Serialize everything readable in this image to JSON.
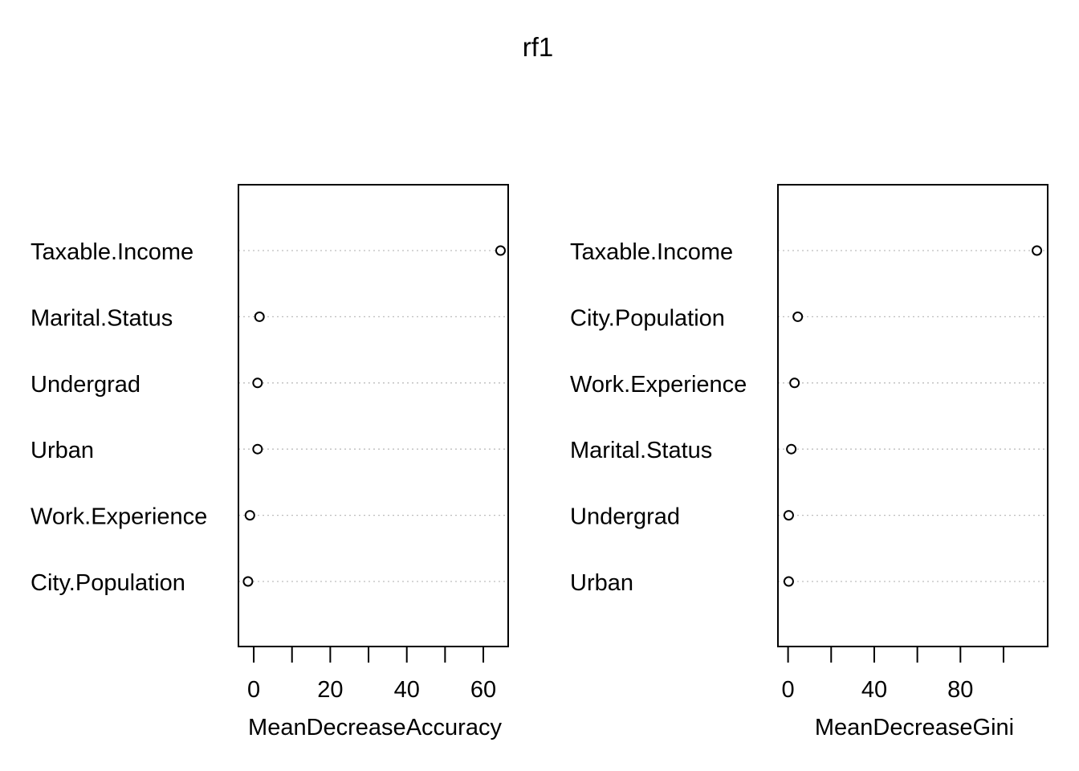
{
  "title": "rf1",
  "chart_data": [
    {
      "type": "scatter",
      "variant": "dotchart",
      "xlabel": "MeanDecreaseAccuracy",
      "ylabel": "",
      "categories": [
        "Taxable.Income",
        "Marital.Status",
        "Undergrad",
        "Urban",
        "Work.Experience",
        "City.Population"
      ],
      "values": [
        64.5,
        1.5,
        1.0,
        1.0,
        -1.0,
        -1.5
      ],
      "xlim": [
        -4,
        66.5
      ],
      "xticks": [
        0,
        10,
        20,
        30,
        40,
        50,
        60
      ],
      "xtick_labels": [
        "0",
        "",
        "20",
        "",
        "40",
        "",
        "60"
      ],
      "grid": "dotted horizontal lines"
    },
    {
      "type": "scatter",
      "variant": "dotchart",
      "xlabel": "MeanDecreaseGini",
      "ylabel": "",
      "categories": [
        "Taxable.Income",
        "City.Population",
        "Work.Experience",
        "Marital.Status",
        "Undergrad",
        "Urban"
      ],
      "values": [
        115.5,
        4.5,
        3.0,
        1.5,
        0.3,
        0.3
      ],
      "xlim": [
        -4.7,
        120.5
      ],
      "xticks": [
        0,
        20,
        40,
        60,
        80,
        100
      ],
      "xtick_labels": [
        "0",
        "",
        "40",
        "",
        "80",
        ""
      ],
      "grid": "dotted horizontal lines"
    }
  ]
}
